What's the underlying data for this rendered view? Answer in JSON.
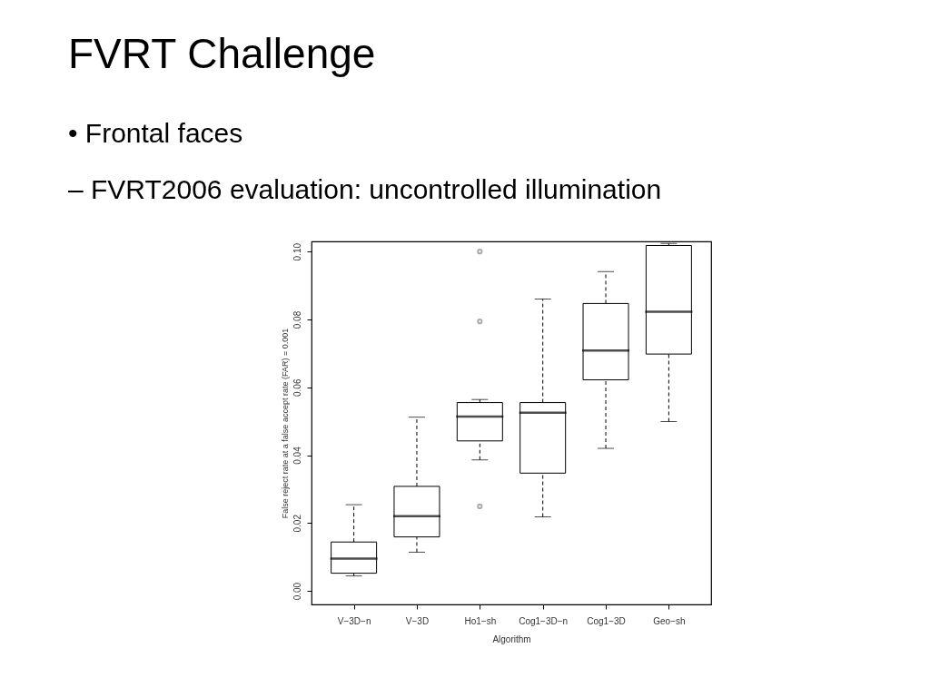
{
  "chart_data": {
    "type": "box",
    "title": "FVRT Challenge",
    "subtitle": "•  Frontal faces",
    "annotations": [
      "– FVRT2006 evaluation: uncontrolled illumination"
    ],
    "xlabel": "Algorithm",
    "ylabel": "False reject rate at a false accept rate (FAR) = 0.001",
    "categories": [
      "V−3D−n",
      "V−3D",
      "Ho1−sh",
      "Cog1−3D−n",
      "Cog1−3D",
      "Geo−sh"
    ],
    "boxes": [
      {
        "low": 0.0044,
        "q1": 0.0052,
        "median": 0.0095,
        "q3": 0.0144,
        "high": 0.0254
      },
      {
        "low": 0.0114,
        "q1": 0.0159,
        "median": 0.022,
        "q3": 0.0308,
        "high": 0.0512
      },
      {
        "low": 0.0386,
        "q1": 0.0442,
        "median": 0.0514,
        "q3": 0.0555,
        "high": 0.0564,
        "outliers": [
          0.1,
          0.0794,
          0.0249
        ]
      },
      {
        "low": 0.0218,
        "q1": 0.0347,
        "median": 0.0525,
        "q3": 0.0555,
        "high": 0.086
      },
      {
        "low": 0.042,
        "q1": 0.0622,
        "median": 0.0708,
        "q3": 0.0847,
        "high": 0.0941
      },
      {
        "low": 0.0499,
        "q1": 0.0698,
        "median": 0.0823,
        "q3": 0.1018,
        "high": 0.1024
      }
    ],
    "ylim": [
      -0.004,
      0.103
    ],
    "yticks": [
      {
        "value": 0,
        "label": "0.00"
      },
      {
        "value": 0.02,
        "label": "0.02"
      },
      {
        "value": 0.04,
        "label": "0.04"
      },
      {
        "value": 0.06,
        "label": "0.06"
      },
      {
        "value": 0.08,
        "label": "0.08"
      },
      {
        "value": 0.1,
        "label": "0.10"
      }
    ],
    "grid": false
  }
}
